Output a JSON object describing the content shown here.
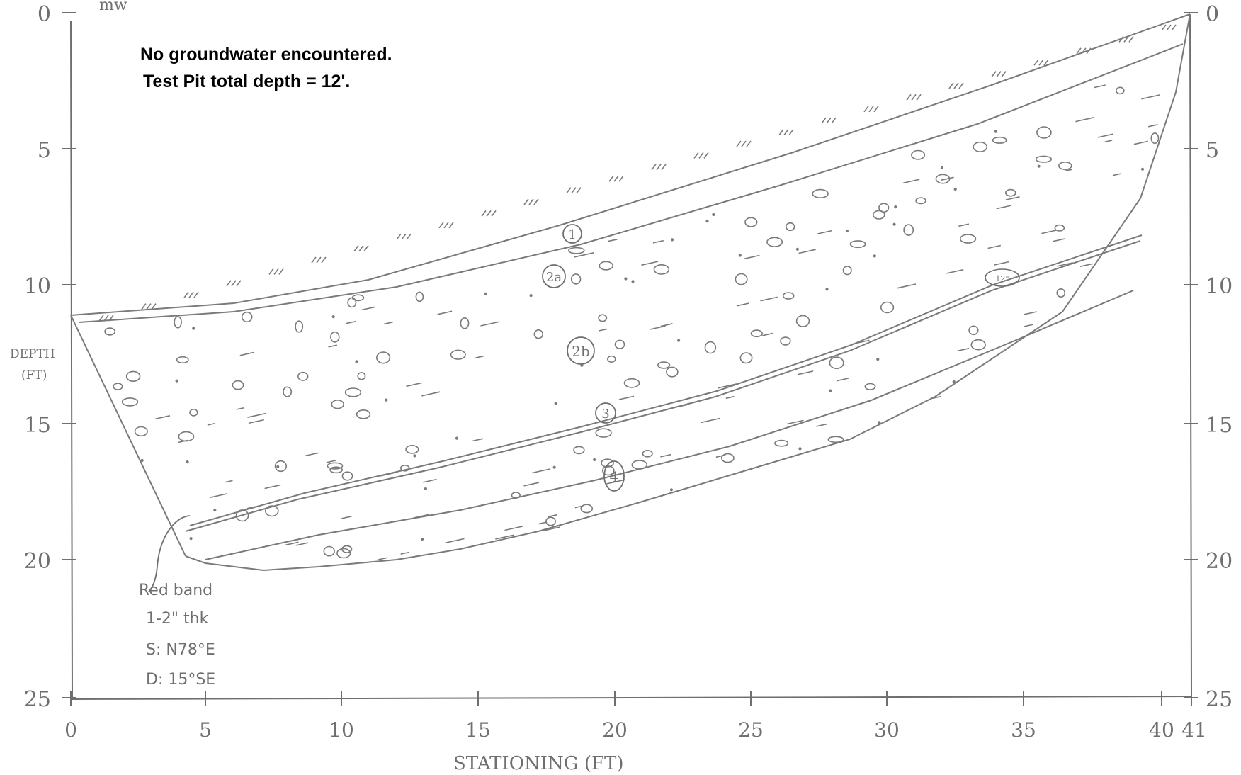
{
  "header": {
    "corner_note": "mw"
  },
  "notes": {
    "groundwater": "No groundwater encountered.",
    "total_depth": "Test Pit total depth = 12'."
  },
  "axes": {
    "left_label_line1": "DEPTH",
    "left_label_line2": "(FT)",
    "bottom_label": "STATIONING (FT)",
    "depth_ticks": [
      "0",
      "5",
      "10",
      "15",
      "20",
      "25"
    ],
    "station_ticks": [
      "0",
      "5",
      "10",
      "15",
      "20",
      "25",
      "30",
      "35",
      "40",
      "41"
    ]
  },
  "units": [
    {
      "id": "1",
      "label": "1"
    },
    {
      "id": "2a",
      "label": "2a"
    },
    {
      "id": "2b",
      "label": "2b"
    },
    {
      "id": "3",
      "label": "3"
    },
    {
      "id": "4",
      "label": "4"
    }
  ],
  "boulder_label": "12\"",
  "red_band_note": {
    "line1": "Red band",
    "line2": "1-2\" thk",
    "line3": "S: N78°E",
    "line4": "D: 15°SE"
  },
  "colors": {
    "pencil": "#6f6f6f",
    "note_text": "#000000"
  }
}
